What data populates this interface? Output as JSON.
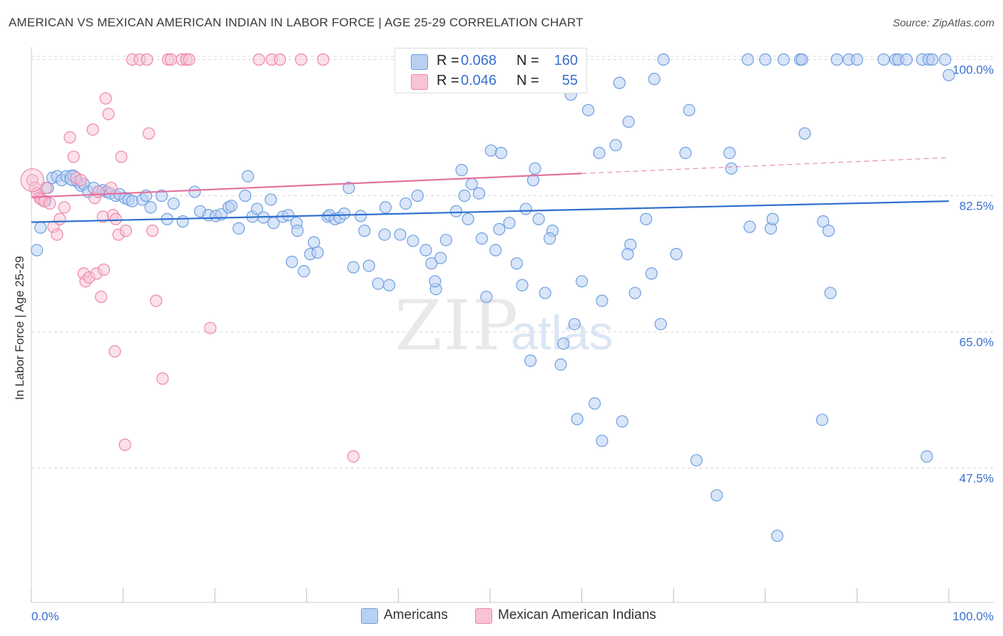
{
  "title": "AMERICAN VS MEXICAN AMERICAN INDIAN IN LABOR FORCE | AGE 25-29 CORRELATION CHART",
  "source": "Source: ZipAtlas.com",
  "watermark": "ZIPatlas",
  "legend": {
    "rows": [
      {
        "r_label": "R =",
        "r_value": "0.068",
        "n_label": "N =",
        "n_value": "160"
      },
      {
        "r_label": "R =",
        "r_value": "0.046",
        "n_label": "N =",
        "n_value": "55"
      }
    ]
  },
  "bottom_legend": {
    "americans": "Americans",
    "mexican": "Mexican American Indians"
  },
  "colors": {
    "blue": "#6f9fe0",
    "blue_fill": "#b9d0f2",
    "blue_line": "#2f6fce",
    "pink": "#ee86aa",
    "pink_fill": "#f7c3d5",
    "pink_line": "#e2729d",
    "axis_label": "#3a6fcf"
  },
  "chart_data": {
    "type": "scatter",
    "title": "AMERICAN VS MEXICAN AMERICAN INDIAN IN LABOR FORCE | AGE 25-29 CORRELATION CHART",
    "xlabel": "",
    "ylabel": "In Labor Force | Age 25-29",
    "xlim": [
      0,
      100
    ],
    "ylim": [
      30,
      102
    ],
    "x_tick_labels": [
      "0.0%",
      "100.0%"
    ],
    "y_ticks": [
      47.5,
      65.0,
      82.5,
      100.0
    ],
    "y_tick_labels": [
      "47.5%",
      "65.0%",
      "82.5%",
      "100.0%"
    ],
    "grid": "horizontal dashed",
    "series": [
      {
        "name": "Americans",
        "color": "#6f9fe0",
        "R": 0.068,
        "N": 160,
        "trend": {
          "x": [
            0,
            100
          ],
          "y": [
            79.1,
            81.8
          ],
          "dashed_from": null
        },
        "points": [
          [
            0.6,
            75.5
          ],
          [
            1.0,
            78.4
          ],
          [
            1.5,
            81.8
          ],
          [
            1.8,
            83.5
          ],
          [
            2.3,
            84.8
          ],
          [
            2.8,
            85.0
          ],
          [
            3.3,
            84.5
          ],
          [
            3.8,
            85.0
          ],
          [
            4.3,
            84.6
          ],
          [
            4.6,
            85.0
          ],
          [
            5.0,
            84.3
          ],
          [
            5.4,
            83.8
          ],
          [
            5.7,
            84.0
          ],
          [
            6.2,
            83.0
          ],
          [
            6.8,
            83.5
          ],
          [
            7.3,
            83.0
          ],
          [
            7.8,
            83.2
          ],
          [
            8.2,
            83.0
          ],
          [
            8.6,
            82.8
          ],
          [
            9.2,
            82.5
          ],
          [
            9.6,
            82.7
          ],
          [
            10.2,
            82.2
          ],
          [
            10.6,
            82.0
          ],
          [
            11.0,
            81.8
          ],
          [
            12.1,
            82.0
          ],
          [
            12.5,
            82.5
          ],
          [
            13.0,
            81.0
          ],
          [
            14.2,
            82.5
          ],
          [
            14.8,
            79.5
          ],
          [
            15.5,
            81.5
          ],
          [
            16.5,
            79.2
          ],
          [
            17.8,
            83.0
          ],
          [
            18.4,
            80.5
          ],
          [
            19.3,
            80.0
          ],
          [
            20.1,
            79.9
          ],
          [
            20.7,
            80.1
          ],
          [
            21.5,
            81.0
          ],
          [
            21.8,
            81.2
          ],
          [
            22.6,
            78.3
          ],
          [
            23.3,
            82.5
          ],
          [
            23.6,
            85.0
          ],
          [
            24.1,
            79.8
          ],
          [
            24.6,
            80.8
          ],
          [
            25.3,
            79.7
          ],
          [
            26.1,
            82.0
          ],
          [
            26.4,
            79.0
          ],
          [
            27.4,
            79.8
          ],
          [
            28.0,
            80.0
          ],
          [
            28.4,
            74.0
          ],
          [
            28.9,
            79.0
          ],
          [
            29.0,
            78.0
          ],
          [
            29.7,
            72.8
          ],
          [
            30.4,
            75.0
          ],
          [
            30.8,
            76.5
          ],
          [
            31.2,
            75.2
          ],
          [
            32.3,
            79.8
          ],
          [
            32.5,
            80.0
          ],
          [
            33.1,
            79.5
          ],
          [
            33.6,
            79.7
          ],
          [
            34.1,
            80.2
          ],
          [
            34.6,
            83.5
          ],
          [
            35.1,
            73.3
          ],
          [
            35.9,
            79.9
          ],
          [
            36.3,
            78.0
          ],
          [
            36.8,
            73.5
          ],
          [
            37.8,
            71.2
          ],
          [
            38.6,
            81.0
          ],
          [
            39.0,
            71.0
          ],
          [
            40.2,
            77.5
          ],
          [
            40.8,
            81.5
          ],
          [
            41.6,
            76.7
          ],
          [
            42.1,
            82.5
          ],
          [
            43.0,
            75.5
          ],
          [
            43.6,
            73.8
          ],
          [
            44.1,
            70.5
          ],
          [
            44.6,
            74.5
          ],
          [
            45.2,
            76.8
          ],
          [
            46.3,
            80.5
          ],
          [
            46.9,
            85.8
          ],
          [
            47.2,
            82.5
          ],
          [
            47.6,
            79.5
          ],
          [
            48.0,
            84.0
          ],
          [
            48.8,
            82.8
          ],
          [
            49.1,
            77.0
          ],
          [
            49.6,
            69.5
          ],
          [
            50.1,
            88.3
          ],
          [
            50.6,
            75.5
          ],
          [
            51.0,
            78.2
          ],
          [
            51.2,
            88.0
          ],
          [
            52.1,
            79.0
          ],
          [
            52.9,
            73.8
          ],
          [
            53.5,
            71.0
          ],
          [
            53.9,
            80.8
          ],
          [
            54.4,
            61.3
          ],
          [
            54.7,
            84.5
          ],
          [
            54.9,
            86.0
          ],
          [
            55.3,
            79.5
          ],
          [
            56.0,
            70.0
          ],
          [
            56.8,
            78.0
          ],
          [
            57.7,
            60.8
          ],
          [
            58.0,
            63.5
          ],
          [
            58.8,
            95.5
          ],
          [
            57.5,
            97.5
          ],
          [
            59.2,
            66.0
          ],
          [
            59.5,
            53.8
          ],
          [
            60.0,
            71.5
          ],
          [
            61.4,
            55.8
          ],
          [
            62.2,
            51.0
          ],
          [
            60.7,
            93.5
          ],
          [
            61.9,
            88.0
          ],
          [
            62.2,
            69.0
          ],
          [
            63.7,
            89.0
          ],
          [
            64.1,
            97.0
          ],
          [
            64.4,
            53.5
          ],
          [
            65.1,
            92.0
          ],
          [
            65.3,
            76.2
          ],
          [
            65.8,
            70.0
          ],
          [
            67.6,
            72.5
          ],
          [
            67.9,
            97.5
          ],
          [
            68.6,
            66.0
          ],
          [
            68.9,
            100.0
          ],
          [
            70.3,
            75.0
          ],
          [
            71.7,
            93.5
          ],
          [
            72.5,
            48.5
          ],
          [
            74.7,
            44.0
          ],
          [
            76.1,
            88.0
          ],
          [
            76.3,
            86.0
          ],
          [
            78.1,
            100.0
          ],
          [
            78.3,
            78.5
          ],
          [
            80.0,
            100.0
          ],
          [
            80.6,
            78.3
          ],
          [
            80.8,
            79.5
          ],
          [
            81.3,
            38.8
          ],
          [
            82.0,
            100.0
          ],
          [
            83.8,
            100.0
          ],
          [
            84.0,
            100.0
          ],
          [
            84.3,
            90.5
          ],
          [
            86.2,
            53.7
          ],
          [
            86.3,
            79.2
          ],
          [
            86.9,
            78.0
          ],
          [
            87.8,
            100.0
          ],
          [
            87.1,
            70.0
          ],
          [
            89.1,
            100.0
          ],
          [
            90.0,
            100.0
          ],
          [
            92.9,
            100.0
          ],
          [
            94.2,
            100.0
          ],
          [
            94.5,
            100.0
          ],
          [
            95.4,
            100.0
          ],
          [
            97.1,
            100.0
          ],
          [
            97.6,
            49.0
          ],
          [
            97.8,
            100.0
          ],
          [
            98.2,
            100.0
          ],
          [
            100.0,
            98.0
          ],
          [
            99.6,
            100.0
          ],
          [
            71.3,
            88.0
          ],
          [
            67.0,
            79.5
          ],
          [
            65.0,
            75.0
          ],
          [
            56.5,
            77.0
          ],
          [
            44.0,
            71.5
          ],
          [
            38.5,
            77.5
          ]
        ]
      },
      {
        "name": "Mexican American Indians",
        "color": "#ee86aa",
        "R": 0.046,
        "N": 55,
        "trend": {
          "x": [
            0,
            100
          ],
          "y": [
            82.3,
            87.4
          ],
          "solid_until_x": 60
        },
        "points": [
          [
            0.1,
            84.5
          ],
          [
            0.4,
            83.5
          ],
          [
            0.6,
            82.8
          ],
          [
            0.9,
            82.2
          ],
          [
            1.1,
            82.0
          ],
          [
            1.4,
            81.8
          ],
          [
            1.6,
            83.5
          ],
          [
            2.0,
            81.5
          ],
          [
            2.4,
            78.5
          ],
          [
            2.8,
            77.5
          ],
          [
            3.1,
            79.5
          ],
          [
            3.6,
            81.0
          ],
          [
            4.2,
            90.0
          ],
          [
            4.6,
            87.5
          ],
          [
            4.9,
            84.8
          ],
          [
            5.4,
            84.5
          ],
          [
            5.7,
            72.5
          ],
          [
            5.9,
            71.5
          ],
          [
            6.3,
            72.0
          ],
          [
            6.7,
            91.0
          ],
          [
            6.9,
            82.2
          ],
          [
            7.1,
            72.5
          ],
          [
            7.3,
            83.0
          ],
          [
            7.6,
            69.5
          ],
          [
            7.8,
            79.8
          ],
          [
            7.9,
            73.0
          ],
          [
            8.1,
            95.0
          ],
          [
            8.4,
            93.0
          ],
          [
            8.7,
            83.5
          ],
          [
            8.9,
            80.0
          ],
          [
            9.1,
            62.5
          ],
          [
            9.2,
            79.5
          ],
          [
            9.5,
            77.5
          ],
          [
            9.8,
            87.5
          ],
          [
            10.2,
            50.5
          ],
          [
            10.3,
            78.0
          ],
          [
            11.0,
            100.0
          ],
          [
            11.8,
            100.0
          ],
          [
            12.6,
            100.0
          ],
          [
            12.8,
            90.5
          ],
          [
            13.2,
            78.0
          ],
          [
            13.6,
            69.0
          ],
          [
            14.3,
            59.0
          ],
          [
            14.9,
            100.0
          ],
          [
            15.2,
            100.0
          ],
          [
            16.4,
            100.0
          ],
          [
            16.9,
            100.0
          ],
          [
            17.2,
            100.0
          ],
          [
            19.5,
            65.5
          ],
          [
            24.8,
            100.0
          ],
          [
            26.2,
            100.0
          ],
          [
            27.1,
            100.0
          ],
          [
            29.4,
            100.0
          ],
          [
            31.8,
            100.0
          ],
          [
            35.1,
            49.0
          ]
        ]
      }
    ]
  }
}
